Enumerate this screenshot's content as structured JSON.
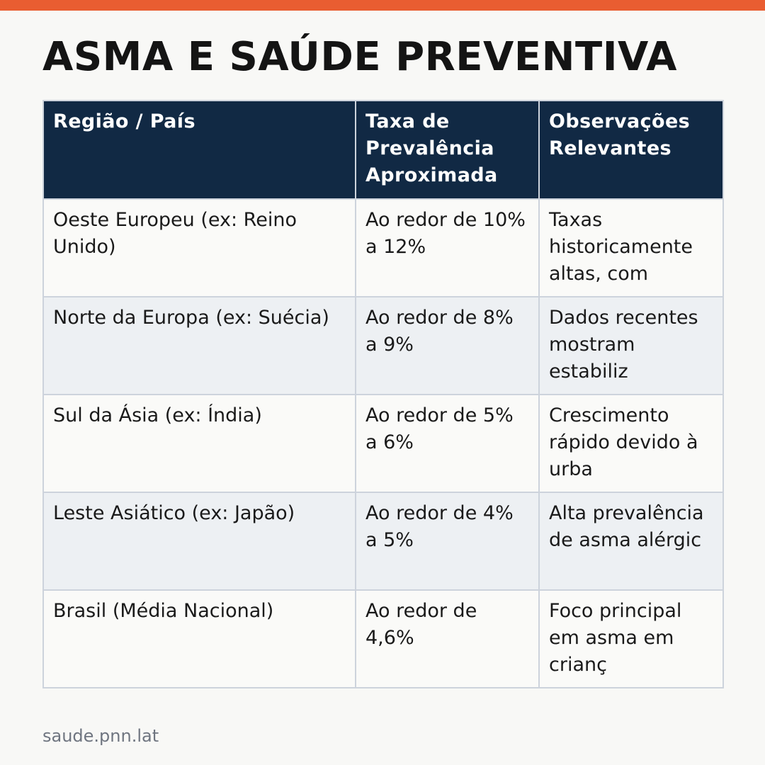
{
  "title": "ASMA E SAÚDE PREVENTIVA",
  "colors": {
    "accent_bar": "#e95d31",
    "header_bg": "#112944",
    "header_text": "#ffffff",
    "row_alt_bg": "#edf0f3",
    "border": "#cdd3dc"
  },
  "table": {
    "headers": [
      "Região / País",
      "Taxa de Prevalência Aproximada",
      "Observações Relevantes"
    ],
    "rows": [
      [
        "Oeste Europeu (ex: Reino Unido)",
        "Ao redor de 10% a 12%",
        "Taxas historicamente altas, com"
      ],
      [
        "Norte da Europa (ex: Suécia)",
        "Ao redor de 8% a 9%",
        "Dados recentes mostram estabiliz"
      ],
      [
        "Sul da Ásia (ex: Índia)",
        "Ao redor de 5% a 6%",
        "Crescimento rápido devido à urba"
      ],
      [
        "Leste Asiático (ex: Japão)",
        "Ao redor de 4% a 5%",
        "Alta prevalência de asma alérgic"
      ],
      [
        "Brasil (Média Nacional)",
        "Ao redor de 4,6%",
        "Foco principal em asma em crianç"
      ]
    ]
  },
  "footer": {
    "url": "saude.pnn.lat"
  }
}
